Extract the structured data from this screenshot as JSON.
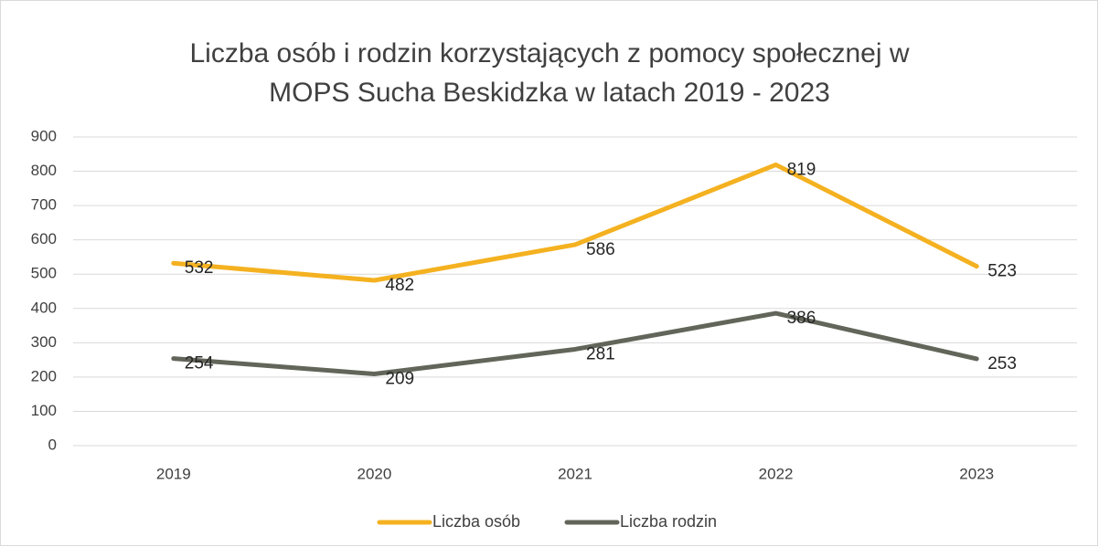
{
  "chart_data": {
    "type": "line",
    "title": [
      "Liczba osób i rodzin korzystających z pomocy społecznej w",
      "MOPS Sucha Beskidzka w latach 2019 - 2023"
    ],
    "categories": [
      "2019",
      "2020",
      "2021",
      "2022",
      "2023"
    ],
    "series": [
      {
        "name": "Liczba osób",
        "color": "#f4b120",
        "values": [
          532,
          482,
          586,
          819,
          523
        ]
      },
      {
        "name": "Liczba rodzin",
        "color": "#62665a",
        "values": [
          254,
          209,
          281,
          386,
          253
        ]
      }
    ],
    "ylim": [
      0,
      900
    ],
    "yticks": [
      0,
      100,
      200,
      300,
      400,
      500,
      600,
      700,
      800,
      900
    ],
    "grid": true,
    "legend": "bottom"
  }
}
